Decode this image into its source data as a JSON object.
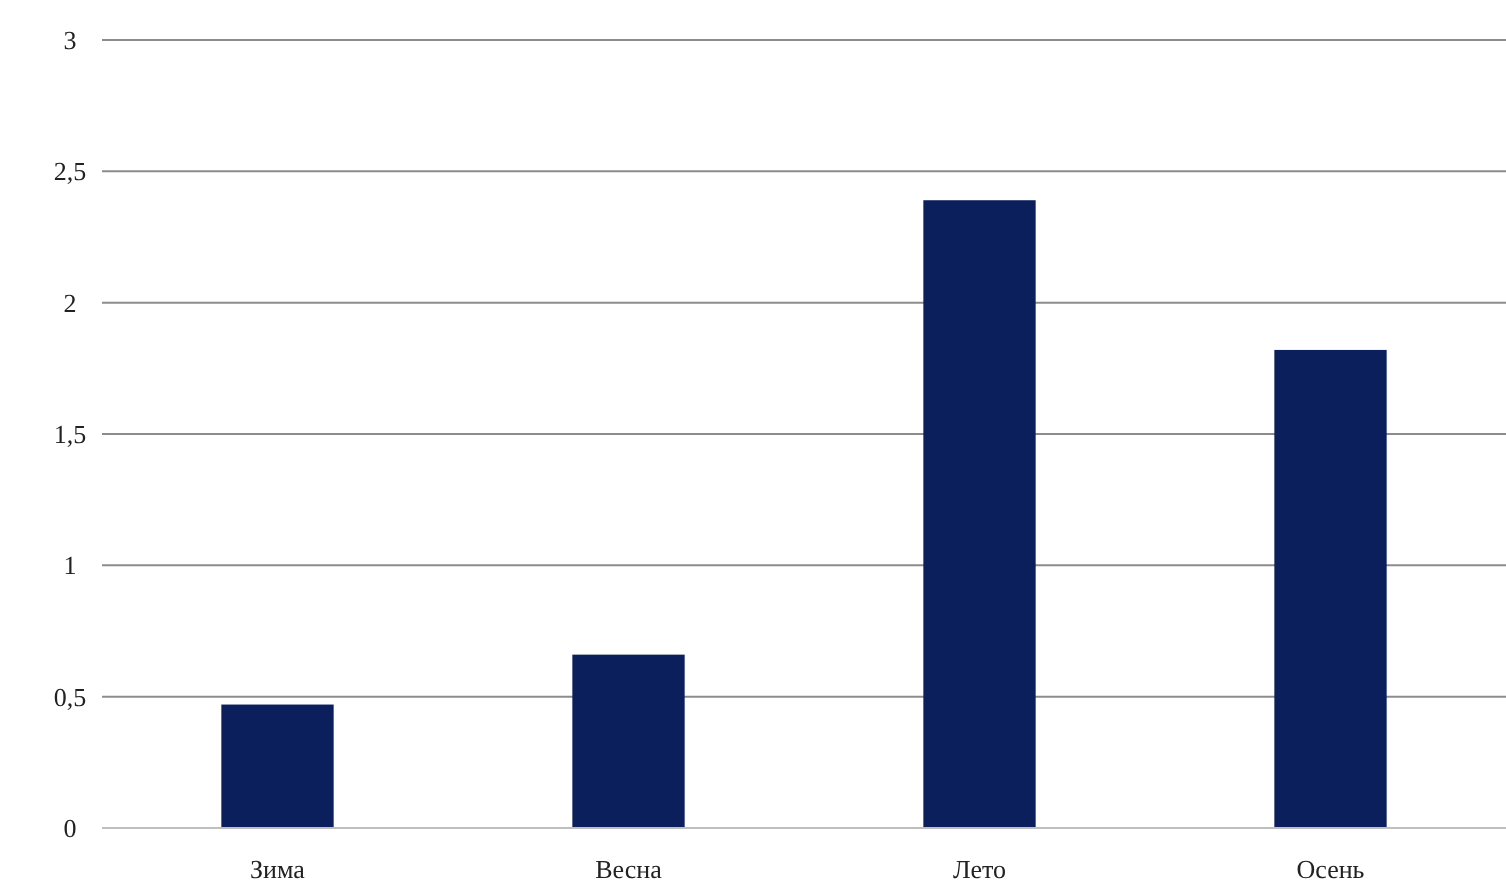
{
  "chart_data": {
    "type": "bar",
    "categories": [
      "Зима",
      "Весна",
      "Лето",
      "Осень"
    ],
    "values": [
      0.47,
      0.66,
      2.39,
      1.82
    ],
    "color": "#0b1f5c",
    "ylim": [
      0,
      3
    ],
    "yticks": [
      0,
      {
        "value": 0.5,
        "label": "0,5"
      },
      1,
      {
        "value": 1.5,
        "label": "1,5"
      },
      2,
      {
        "value": 2.5,
        "label": "2,5"
      },
      3
    ],
    "grid": "y"
  }
}
